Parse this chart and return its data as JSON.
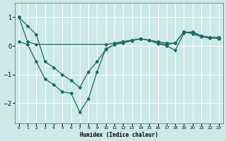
{
  "xlabel": "Humidex (Indice chaleur)",
  "bg_color": "#cce8e8",
  "line_color": "#1a6b60",
  "xlim": [
    -0.5,
    23.5
  ],
  "ylim": [
    -2.7,
    1.5
  ],
  "yticks": [
    -2,
    -1,
    0,
    1
  ],
  "xticks": [
    0,
    1,
    2,
    3,
    4,
    5,
    6,
    7,
    8,
    9,
    10,
    11,
    12,
    13,
    14,
    15,
    16,
    17,
    18,
    19,
    20,
    21,
    22,
    23
  ],
  "curveA": {
    "x": [
      0,
      1,
      2,
      10,
      11,
      12,
      13,
      14,
      15,
      16,
      17,
      18,
      19,
      20,
      21,
      22,
      23
    ],
    "y": [
      1.0,
      0.15,
      0.05,
      0.05,
      0.1,
      0.15,
      0.2,
      0.25,
      0.2,
      0.15,
      0.1,
      0.1,
      0.5,
      0.45,
      0.35,
      0.3,
      0.3
    ]
  },
  "curveB": {
    "x": [
      0,
      1,
      2,
      3,
      4,
      5,
      6,
      7,
      8,
      9,
      10,
      11,
      12,
      13,
      14,
      15,
      16,
      17,
      18,
      19,
      20,
      21,
      22,
      23
    ],
    "y": [
      0.15,
      0.05,
      -0.55,
      -1.15,
      -1.35,
      -1.6,
      -1.65,
      -2.3,
      -1.85,
      -0.9,
      -0.1,
      0.05,
      0.15,
      0.2,
      0.25,
      0.2,
      0.1,
      0.05,
      0.1,
      0.5,
      0.42,
      0.32,
      0.27,
      0.28
    ]
  },
  "curveC": {
    "x": [
      0,
      1,
      2,
      3,
      4,
      5,
      6,
      7,
      8,
      9,
      10,
      11,
      12,
      13,
      14,
      15,
      16,
      17,
      18,
      19,
      20,
      21,
      22,
      23
    ],
    "y": [
      1.0,
      0.7,
      0.4,
      -0.55,
      -0.75,
      -1.0,
      -1.2,
      -1.45,
      -0.9,
      -0.55,
      -0.12,
      0.05,
      0.1,
      0.18,
      0.25,
      0.2,
      0.08,
      0.0,
      -0.15,
      0.45,
      0.5,
      0.35,
      0.3,
      0.25
    ]
  }
}
